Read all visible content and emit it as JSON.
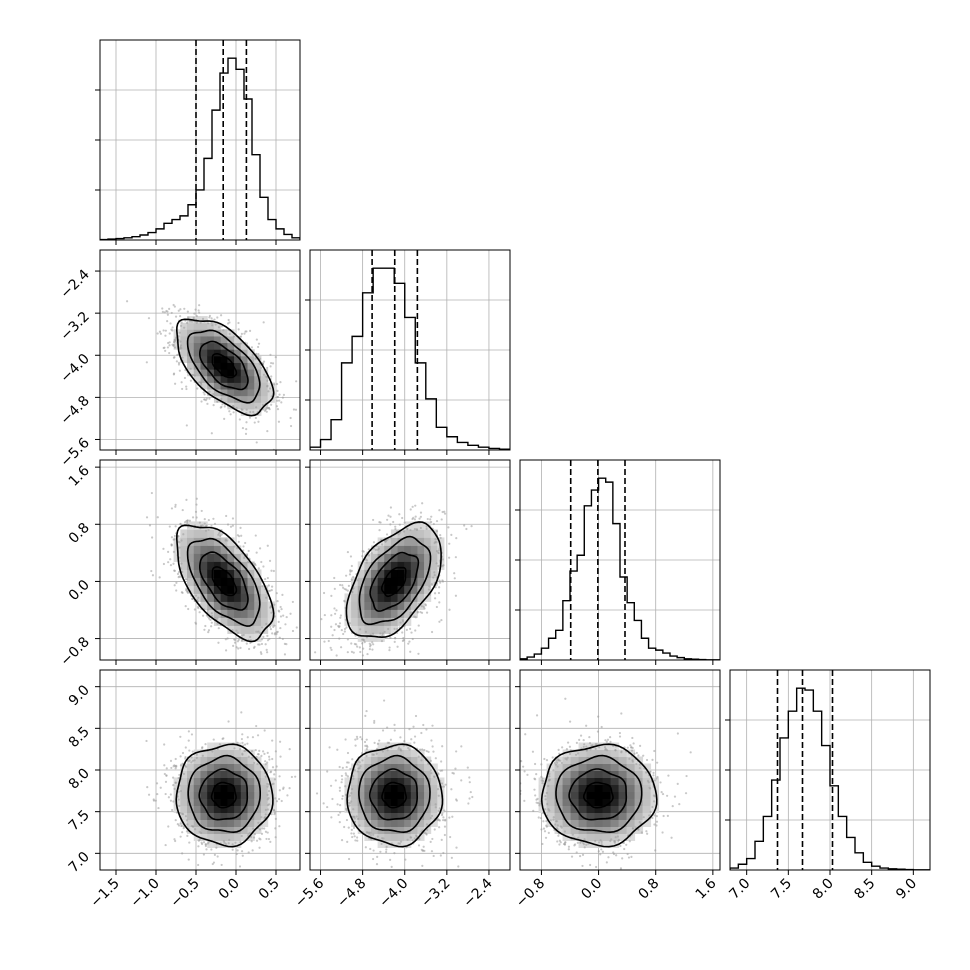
{
  "chart_data": {
    "type": "corner",
    "parameters": [
      {
        "range": [
          -1.7,
          0.8
        ],
        "mean": -0.15,
        "sd": 0.3,
        "quantiles": [
          -0.5,
          -0.16,
          0.13
        ],
        "ticks": [
          -1.5,
          -1.0,
          -0.5,
          0.0,
          0.5
        ],
        "tick_labels": [
          "−1.5",
          "−1.0",
          "−0.5",
          "0.0",
          "0.5"
        ]
      },
      {
        "range": [
          -5.8,
          -2.0
        ],
        "mean": -4.2,
        "sd": 0.45,
        "quantiles": [
          -4.62,
          -4.19,
          -3.76
        ],
        "ticks": [
          -5.6,
          -4.8,
          -4.0,
          -3.2,
          -2.4
        ],
        "tick_labels": [
          "−5.6",
          "−4.8",
          "−4.0",
          "−3.2",
          "−2.4"
        ]
      },
      {
        "range": [
          -1.1,
          1.7
        ],
        "mean": 0.0,
        "sd": 0.4,
        "quantiles": [
          -0.39,
          -0.01,
          0.37
        ],
        "ticks": [
          -0.8,
          0.0,
          0.8,
          1.6
        ],
        "tick_labels": [
          "−0.8",
          "0.0",
          "0.8",
          "1.6"
        ]
      },
      {
        "range": [
          6.8,
          9.2
        ],
        "mean": 7.7,
        "sd": 0.3,
        "quantiles": [
          7.37,
          7.67,
          8.03
        ],
        "ticks": [
          7.0,
          7.5,
          8.0,
          8.5,
          9.0
        ],
        "tick_labels": [
          "7.0",
          "7.5",
          "8.0",
          "8.5",
          "9.0"
        ]
      }
    ],
    "histograms": [
      {
        "param": 0,
        "bin_edges": [
          -1.7,
          -1.6,
          -1.5,
          -1.4,
          -1.3,
          -1.2,
          -1.1,
          -1.0,
          -0.9,
          -0.8,
          -0.7,
          -0.6,
          -0.5,
          -0.4,
          -0.3,
          -0.2,
          -0.1,
          0.0,
          0.1,
          0.2,
          0.3,
          0.4,
          0.5,
          0.6,
          0.7,
          0.8
        ],
        "counts": [
          2,
          5,
          8,
          12,
          18,
          27,
          40,
          60,
          90,
          110,
          130,
          190,
          270,
          440,
          700,
          900,
          980,
          920,
          760,
          460,
          230,
          110,
          60,
          30,
          12
        ]
      },
      {
        "param": 1,
        "bin_edges": [
          -5.8,
          -5.6,
          -5.4,
          -5.2,
          -5.0,
          -4.8,
          -4.6,
          -4.4,
          -4.2,
          -4.0,
          -3.8,
          -3.6,
          -3.4,
          -3.2,
          -3.0,
          -2.8,
          -2.6,
          -2.4,
          -2.2,
          -2.0
        ],
        "counts": [
          15,
          55,
          160,
          460,
          600,
          830,
          960,
          960,
          880,
          700,
          460,
          270,
          120,
          70,
          40,
          25,
          15,
          8,
          4
        ]
      },
      {
        "param": 2,
        "bin_edges": [
          -1.1,
          -1.0,
          -0.9,
          -0.8,
          -0.7,
          -0.6,
          -0.5,
          -0.4,
          -0.3,
          -0.2,
          -0.1,
          0.0,
          0.1,
          0.2,
          0.3,
          0.4,
          0.5,
          0.6,
          0.7,
          0.8,
          0.9,
          1.0,
          1.1,
          1.2,
          1.3,
          1.4,
          1.5,
          1.6,
          1.7
        ],
        "counts": [
          6,
          15,
          30,
          60,
          110,
          150,
          300,
          450,
          530,
          780,
          860,
          920,
          900,
          690,
          420,
          290,
          200,
          110,
          60,
          50,
          35,
          20,
          12,
          6,
          4,
          2,
          1,
          1
        ]
      },
      {
        "param": 3,
        "bin_edges": [
          6.8,
          6.9,
          7.0,
          7.1,
          7.2,
          7.3,
          7.4,
          7.5,
          7.6,
          7.7,
          7.8,
          7.9,
          8.0,
          8.1,
          8.2,
          8.3,
          8.4,
          8.5,
          8.6,
          8.7,
          8.8,
          8.9,
          9.0,
          9.1,
          9.2
        ],
        "counts": [
          10,
          30,
          60,
          150,
          280,
          470,
          690,
          830,
          950,
          940,
          830,
          650,
          440,
          280,
          170,
          90,
          40,
          20,
          10,
          6,
          4,
          2,
          1,
          1
        ]
      }
    ],
    "correlations": {
      "1_0": -0.58,
      "2_0": -0.58,
      "2_1": 0.5,
      "3_0": 0.0,
      "3_1": 0.0,
      "3_2": 0.0
    },
    "contour_levels_sigma": [
      0.5,
      1.0,
      1.5,
      2.0
    ],
    "n_scatter_points": 1500,
    "colors": {
      "line": "#000000",
      "scatter": "#9a9a9a",
      "grid": "#b0b0b0"
    },
    "grid": true
  }
}
